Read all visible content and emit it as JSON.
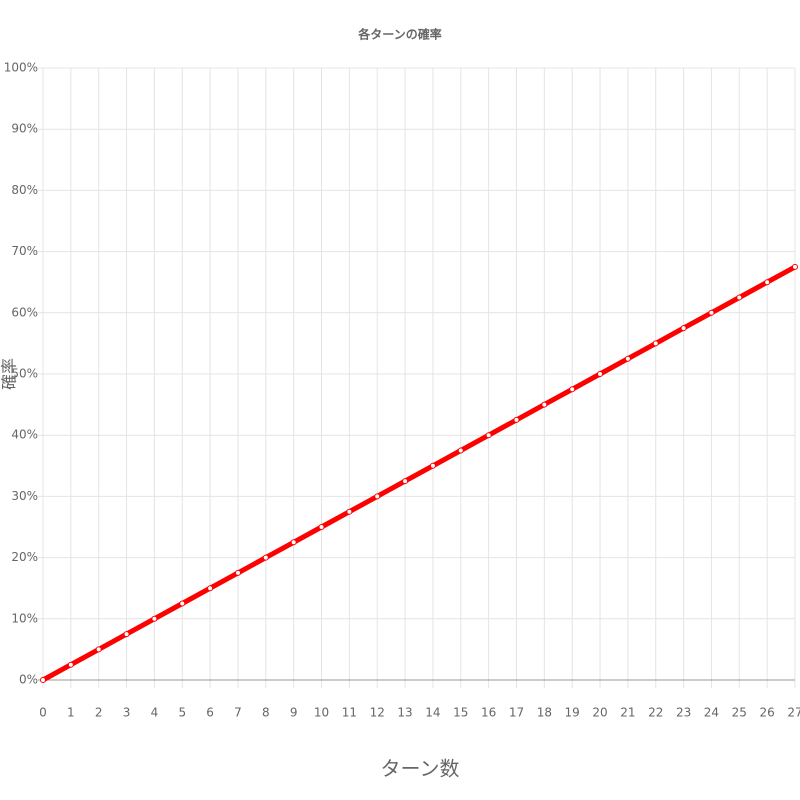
{
  "chart_data": {
    "type": "line",
    "title": "各ターンの確率",
    "x_label": "ターン数",
    "y_label": "確率",
    "x": [
      0,
      1,
      2,
      3,
      4,
      5,
      6,
      7,
      8,
      9,
      10,
      11,
      12,
      13,
      14,
      15,
      16,
      17,
      18,
      19,
      20,
      21,
      22,
      23,
      24,
      25,
      26,
      27
    ],
    "series": [
      {
        "name": "確率",
        "color": "#ff0000",
        "values": [
          0,
          2.5,
          5,
          7.5,
          10,
          12.5,
          15,
          17.5,
          20,
          22.5,
          25,
          27.5,
          30,
          32.5,
          35,
          37.5,
          40,
          42.5,
          45,
          47.5,
          50,
          52.5,
          55,
          57.5,
          60,
          62.5,
          65,
          67.5
        ]
      }
    ],
    "xlim": [
      0,
      27
    ],
    "xticks": [
      0,
      1,
      2,
      3,
      4,
      5,
      6,
      7,
      8,
      9,
      10,
      11,
      12,
      13,
      14,
      15,
      16,
      17,
      18,
      19,
      20,
      21,
      22,
      23,
      24,
      25,
      26,
      27
    ],
    "ylim": [
      0,
      100
    ],
    "yticks": [
      {
        "value": 0,
        "label": "0%"
      },
      {
        "value": 10,
        "label": "10%"
      },
      {
        "value": 20,
        "label": "20%"
      },
      {
        "value": 30,
        "label": "30%"
      },
      {
        "value": 40,
        "label": "40%"
      },
      {
        "value": 50,
        "label": "50%"
      },
      {
        "value": 60,
        "label": "60%"
      },
      {
        "value": 70,
        "label": "70%"
      },
      {
        "value": 80,
        "label": "80%"
      },
      {
        "value": 90,
        "label": "90%"
      },
      {
        "value": 100,
        "label": "100%"
      }
    ],
    "grid": true
  }
}
